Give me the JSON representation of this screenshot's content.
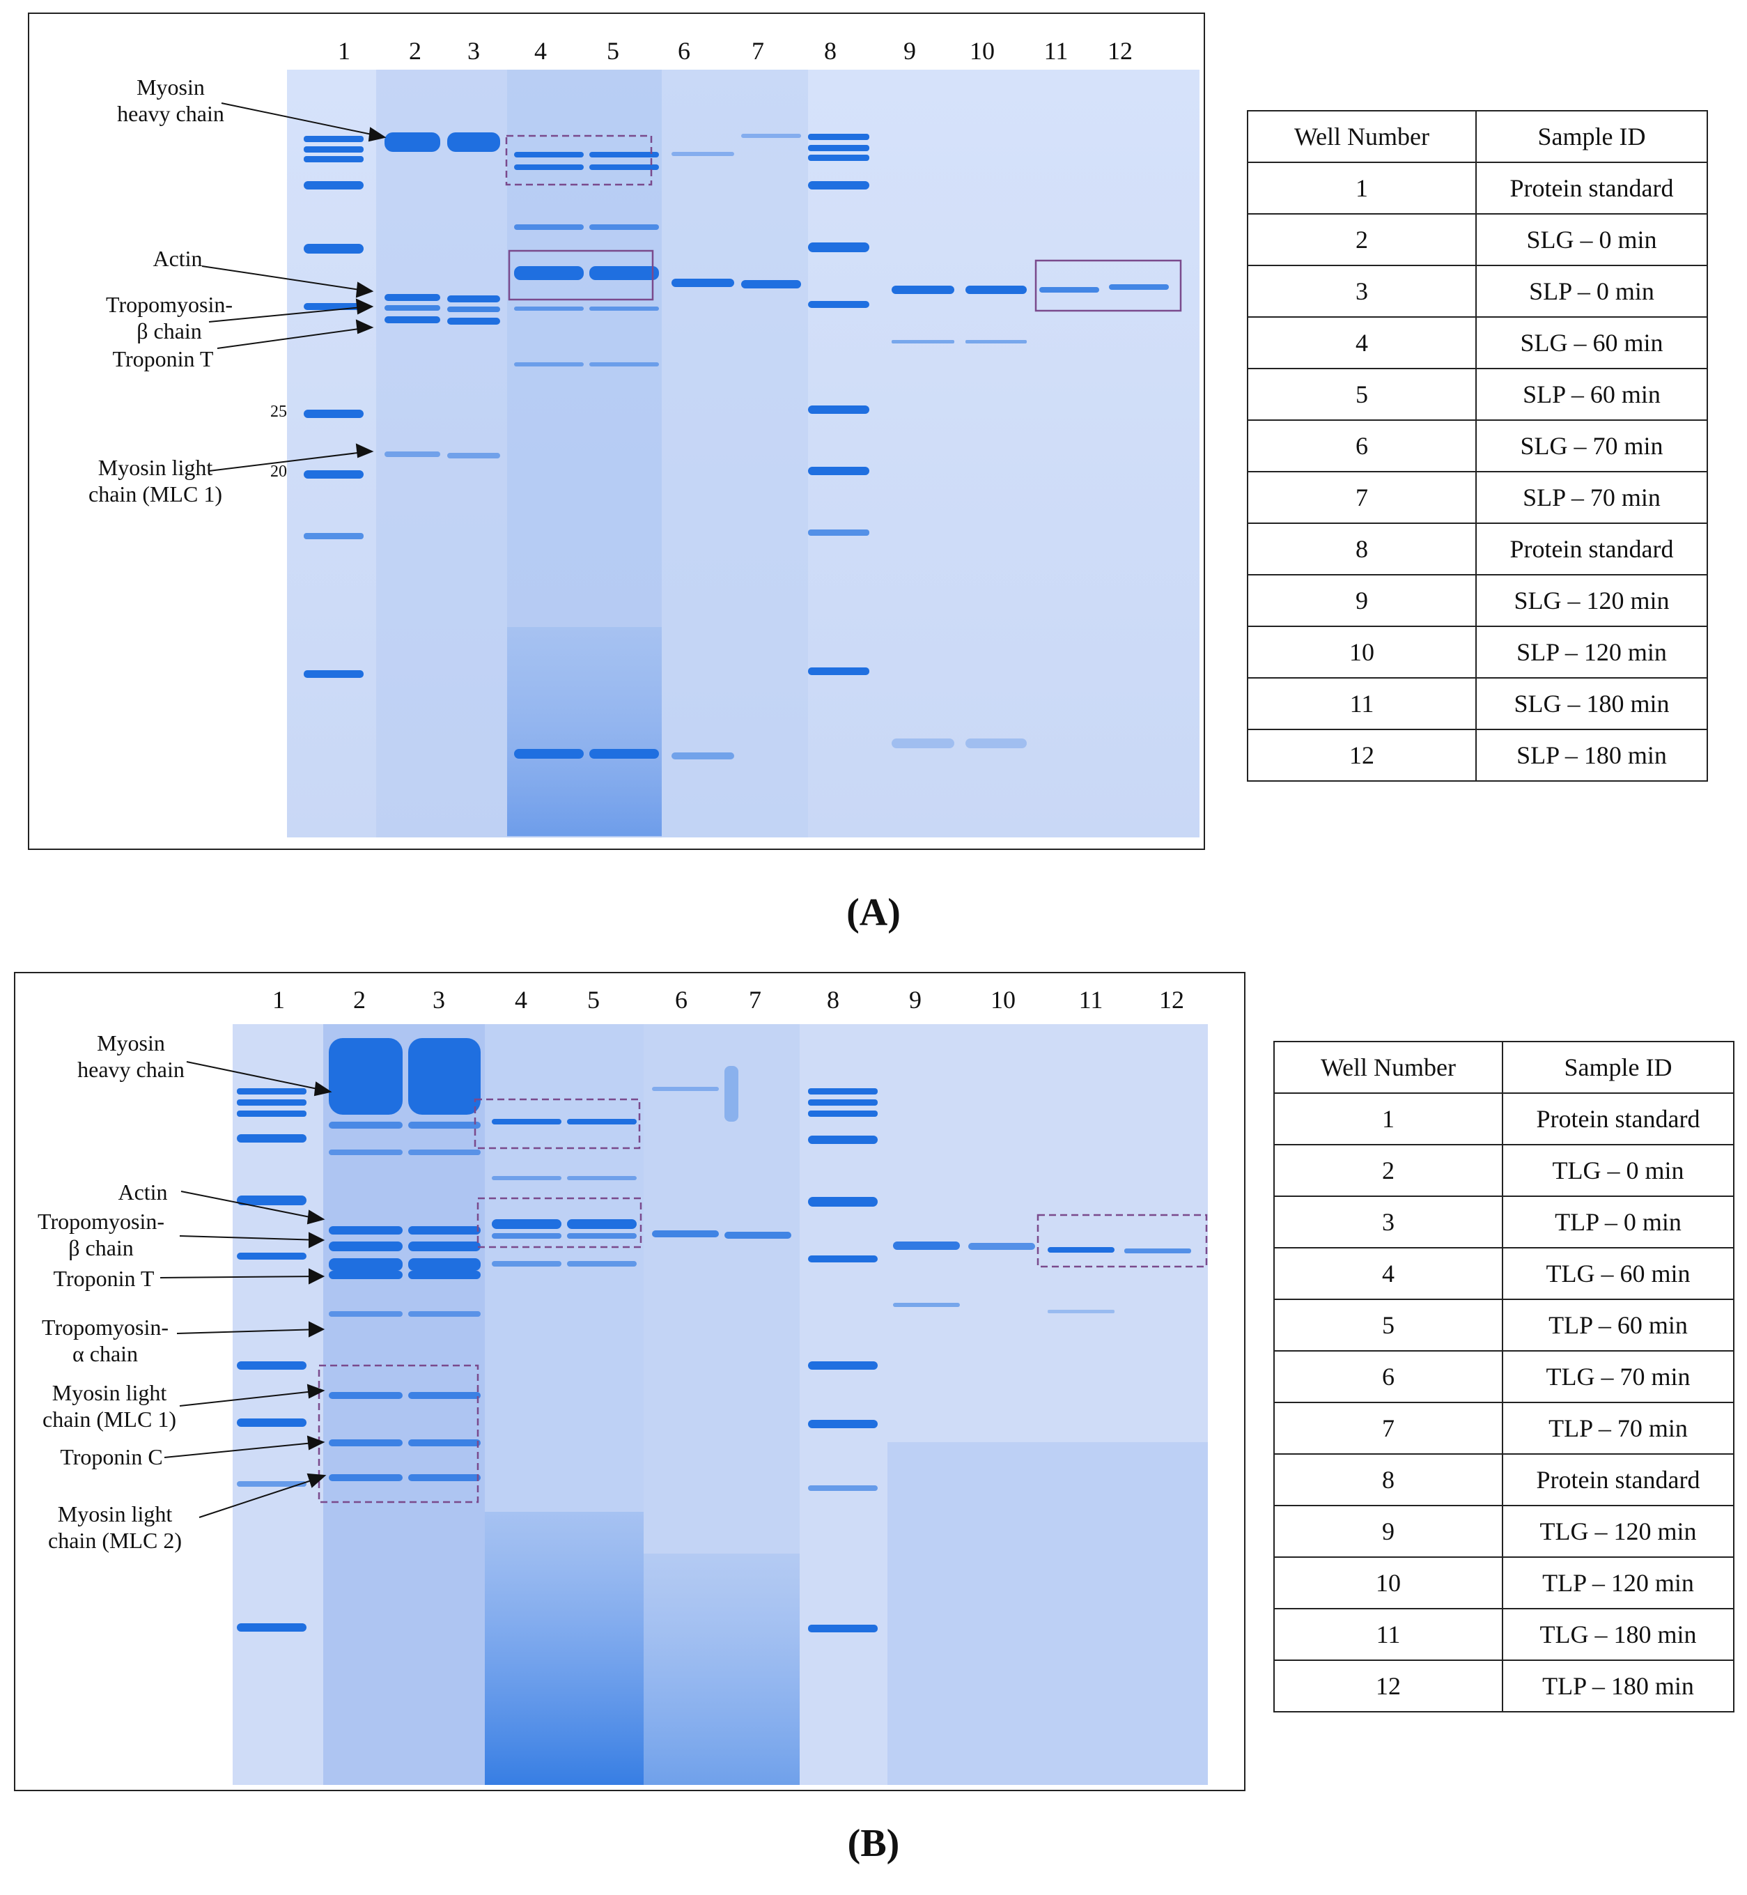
{
  "panel_a": {
    "label": "(A)",
    "lane_numbers": [
      "1",
      "2",
      "3",
      "4",
      "5",
      "6",
      "7",
      "8",
      "9",
      "10",
      "11",
      "12"
    ],
    "band_labels": {
      "myosin_heavy_chain": "Myosin\nheavy chain",
      "actin": "Actin",
      "tropomyosin_beta": "Tropomyosin-\nβ chain",
      "troponin_t": "Troponin T",
      "myosin_light_chain_1": "Myosin light\nchain (MLC 1)"
    },
    "mw_markers": {
      "m25": "25",
      "m20": "20"
    },
    "table": {
      "header": {
        "well": "Well Number",
        "sample": "Sample ID"
      },
      "rows": [
        {
          "well": "1",
          "sample": "Protein standard"
        },
        {
          "well": "2",
          "sample": "SLG – 0 min"
        },
        {
          "well": "3",
          "sample": "SLP – 0 min"
        },
        {
          "well": "4",
          "sample": "SLG – 60 min"
        },
        {
          "well": "5",
          "sample": "SLP – 60 min"
        },
        {
          "well": "6",
          "sample": "SLG – 70 min"
        },
        {
          "well": "7",
          "sample": "SLP – 70 min"
        },
        {
          "well": "8",
          "sample": "Protein standard"
        },
        {
          "well": "9",
          "sample": "SLG – 120 min"
        },
        {
          "well": "10",
          "sample": "SLP – 120 min"
        },
        {
          "well": "11",
          "sample": "SLG – 180 min"
        },
        {
          "well": "12",
          "sample": "SLP – 180 min"
        }
      ]
    }
  },
  "panel_b": {
    "label": "(B)",
    "lane_numbers": [
      "1",
      "2",
      "3",
      "4",
      "5",
      "6",
      "7",
      "8",
      "9",
      "10",
      "11",
      "12"
    ],
    "band_labels": {
      "myosin_heavy_chain": "Myosin\nheavy chain",
      "actin": "Actin",
      "tropomyosin_beta": "Tropomyosin-\nβ chain",
      "troponin_t": "Troponin T",
      "tropomyosin_alpha": "Tropomyosin-\nα chain",
      "myosin_light_chain_1": "Myosin light\nchain (MLC 1)",
      "troponin_c": "Troponin C",
      "myosin_light_chain_2": "Myosin      light\nchain (MLC 2)"
    },
    "table": {
      "header": {
        "well": "Well Number",
        "sample": "Sample ID"
      },
      "rows": [
        {
          "well": "1",
          "sample": "Protein standard"
        },
        {
          "well": "2",
          "sample": "TLG – 0 min"
        },
        {
          "well": "3",
          "sample": "TLP – 0 min"
        },
        {
          "well": "4",
          "sample": "TLG – 60 min"
        },
        {
          "well": "5",
          "sample": "TLP – 60 min"
        },
        {
          "well": "6",
          "sample": "TLG – 70 min"
        },
        {
          "well": "7",
          "sample": "TLP – 70 min"
        },
        {
          "well": "8",
          "sample": "Protein standard"
        },
        {
          "well": "9",
          "sample": "TLG – 120 min"
        },
        {
          "well": "10",
          "sample": "TLP – 120 min"
        },
        {
          "well": "11",
          "sample": "TLG – 180 min"
        },
        {
          "well": "12",
          "sample": "TLP – 180 min"
        }
      ]
    }
  },
  "colors": {
    "gel_bg": "#cfdcf7",
    "band": "#1f6fe0",
    "box": "#7a4a8c",
    "ink": "#111111"
  }
}
